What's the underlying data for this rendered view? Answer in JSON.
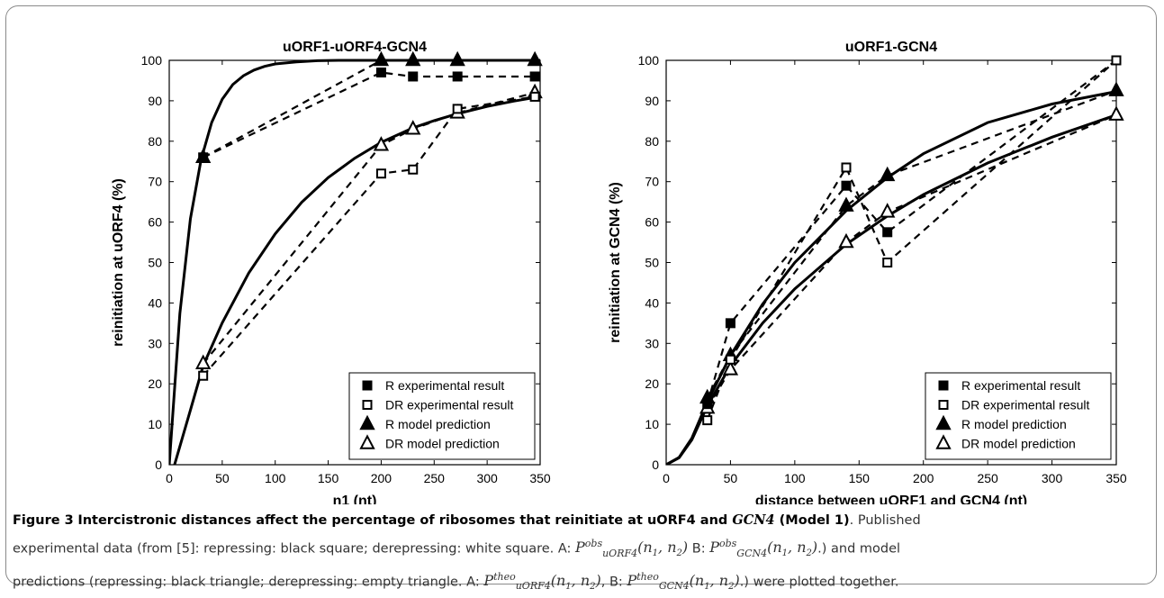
{
  "chart_data": [
    {
      "type": "line",
      "title": "uORF1-uORF4-GCN4",
      "xlabel": "n1 (nt)",
      "ylabel": "reinitiation at uORF4 (%)",
      "xlim": [
        0,
        350
      ],
      "ylim": [
        0,
        100
      ],
      "xticks": [
        0,
        50,
        100,
        150,
        200,
        250,
        300,
        350
      ],
      "yticks": [
        0,
        10,
        20,
        30,
        40,
        50,
        60,
        70,
        80,
        90,
        100
      ],
      "grid": false,
      "legend_position": "bottom-right",
      "series": [
        {
          "name": "R experimental result",
          "marker": "filled-square",
          "line": "dashed",
          "x": [
            32,
            200,
            230,
            272,
            345
          ],
          "y": [
            76,
            97,
            96,
            96,
            96
          ]
        },
        {
          "name": "DR experimental result",
          "marker": "open-square",
          "line": "dashed",
          "x": [
            32,
            200,
            230,
            272,
            345
          ],
          "y": [
            22,
            72,
            73,
            88,
            91
          ]
        },
        {
          "name": "R model prediction",
          "marker": "filled-triangle",
          "line": "dashed",
          "x": [
            32,
            200,
            230,
            272,
            345
          ],
          "y": [
            76,
            100,
            100,
            100,
            100
          ]
        },
        {
          "name": "DR model prediction",
          "marker": "open-triangle",
          "line": "dashed",
          "x": [
            32,
            200,
            230,
            272,
            345
          ],
          "y": [
            25,
            79,
            83,
            87,
            92
          ]
        }
      ],
      "curves": [
        {
          "series": "R model prediction",
          "line": "solid",
          "x": [
            0,
            10,
            20,
            30,
            40,
            50,
            60,
            70,
            80,
            90,
            100,
            120,
            140,
            160,
            180,
            200,
            250,
            300,
            350
          ],
          "y": [
            0,
            37.4,
            60.8,
            75.4,
            84.6,
            90.4,
            94.0,
            96.2,
            97.6,
            98.5,
            99.1,
            99.6,
            99.9,
            100,
            100,
            100,
            100,
            100,
            100
          ]
        },
        {
          "series": "DR model prediction",
          "line": "solid",
          "x": [
            5,
            20,
            32,
            50,
            75,
            100,
            125,
            150,
            175,
            200,
            230,
            250,
            272,
            300,
            325,
            345
          ],
          "y": [
            0,
            13.5,
            24.5,
            35.1,
            47.4,
            57.1,
            64.9,
            71.0,
            75.8,
            79.7,
            83.3,
            85.1,
            86.8,
            88.6,
            89.9,
            90.8
          ]
        }
      ]
    },
    {
      "type": "line",
      "title": "uORF1-GCN4",
      "xlabel": "distance between uORF1 and GCN4 (nt)",
      "ylabel": "reinitiation at GCN4 (%)",
      "xlim": [
        0,
        350
      ],
      "ylim": [
        0,
        100
      ],
      "xticks": [
        0,
        50,
        100,
        150,
        200,
        250,
        300,
        350
      ],
      "yticks": [
        0,
        10,
        20,
        30,
        40,
        50,
        60,
        70,
        80,
        90,
        100
      ],
      "grid": false,
      "legend_position": "bottom-right",
      "series": [
        {
          "name": "R experimental result",
          "marker": "filled-square",
          "line": "dashed",
          "x": [
            32,
            50,
            140,
            172,
            350
          ],
          "y": [
            15,
            35,
            69,
            57.5,
            100
          ]
        },
        {
          "name": "DR experimental result",
          "marker": "open-square",
          "line": "dashed",
          "x": [
            32,
            50,
            140,
            172,
            350
          ],
          "y": [
            11,
            26,
            73.5,
            50,
            100
          ]
        },
        {
          "name": "R model prediction",
          "marker": "filled-triangle",
          "line": "dashed",
          "x": [
            32,
            50,
            140,
            172,
            350
          ],
          "y": [
            16.5,
            27,
            64,
            71.5,
            92.5
          ]
        },
        {
          "name": "DR model prediction",
          "marker": "open-triangle",
          "line": "dashed",
          "x": [
            32,
            50,
            140,
            172,
            350
          ],
          "y": [
            14,
            23.5,
            55,
            62.5,
            86.5
          ]
        }
      ],
      "curves": [
        {
          "series": "R model prediction",
          "line": "solid",
          "x": [
            0,
            10,
            20,
            32,
            50,
            75,
            100,
            140,
            172,
            200,
            250,
            300,
            350
          ],
          "y": [
            0,
            1.8,
            6.6,
            15.5,
            27.0,
            39.7,
            50.0,
            62.8,
            71.0,
            76.9,
            84.6,
            89.2,
            92.3
          ]
        },
        {
          "series": "DR model prediction",
          "line": "solid",
          "x": [
            0,
            10,
            20,
            32,
            50,
            75,
            100,
            140,
            172,
            200,
            250,
            300,
            350
          ],
          "y": [
            0,
            1.7,
            6.2,
            14.5,
            24.5,
            35.0,
            43.5,
            54.5,
            61.5,
            66.8,
            74.6,
            81.0,
            86.5
          ]
        }
      ]
    }
  ],
  "caption": {
    "figure_label": "Figure 3",
    "title_part1": "Intercistronic distances affect the percentage of ribosomes that reinitiate at uORF4 and ",
    "title_gene": "GCN4",
    "title_part2": " (Model 1)",
    "title_end": ". Published",
    "line1_rest": "experimental data (from [5]: repressing: black square; derepressing: white square. A: ",
    "formula_a_obs": "P obs uORF4 (n1, n2)",
    "sep_b1": " B: ",
    "formula_b_obs": "P obs GCN4 (n1, n2)",
    "line2_tail": ".) and model",
    "line3_start": "predictions (repressing: black triangle; derepressing: empty triangle. A: ",
    "formula_a_theo": "P theo uORF4 (n1, n2)",
    "sep_b2": ", B: ",
    "formula_b_theo": "P theo GCN4 (n1, n2)",
    "line3_tail": ".) were plotted together."
  }
}
